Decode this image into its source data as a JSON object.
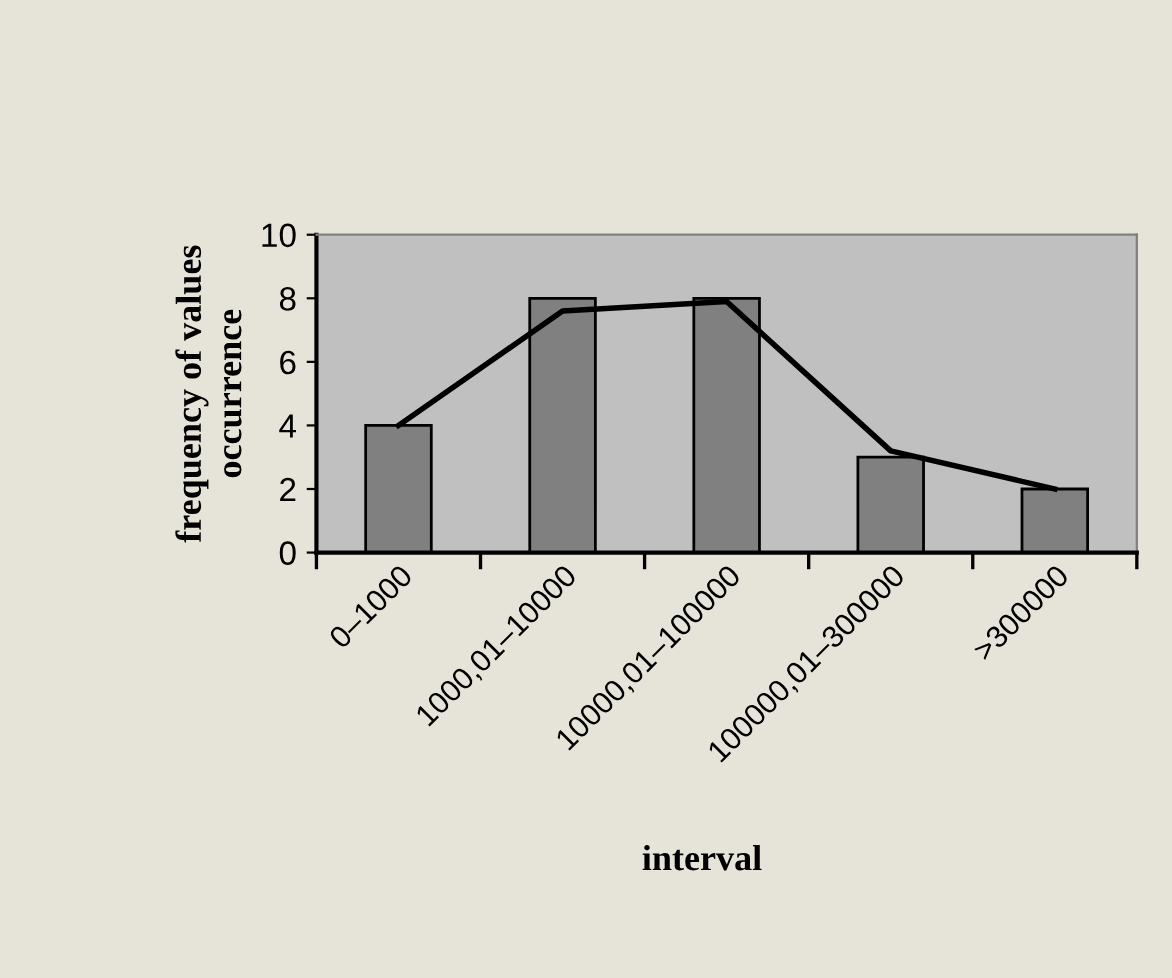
{
  "chart_data": {
    "type": "bar",
    "xlabel": "interval",
    "ylabel": "frequency of values\noccurrence",
    "categories": [
      "0–1000",
      "1000,01–10000",
      "10000,01–100000",
      "100000,01–300000",
      ">300000"
    ],
    "series": [
      {
        "color": "#808080",
        "values": [
          4,
          8,
          8,
          3,
          2
        ]
      },
      {
        "type": "line",
        "color": "#000000",
        "values": [
          4.0,
          7.6,
          7.9,
          3.2,
          2.0
        ]
      }
    ],
    "ylim": [
      0,
      10
    ],
    "yticks": [
      0,
      2,
      4,
      6,
      8,
      10
    ],
    "grid": false,
    "legend": false,
    "marker": "none",
    "line_style": "solid"
  }
}
